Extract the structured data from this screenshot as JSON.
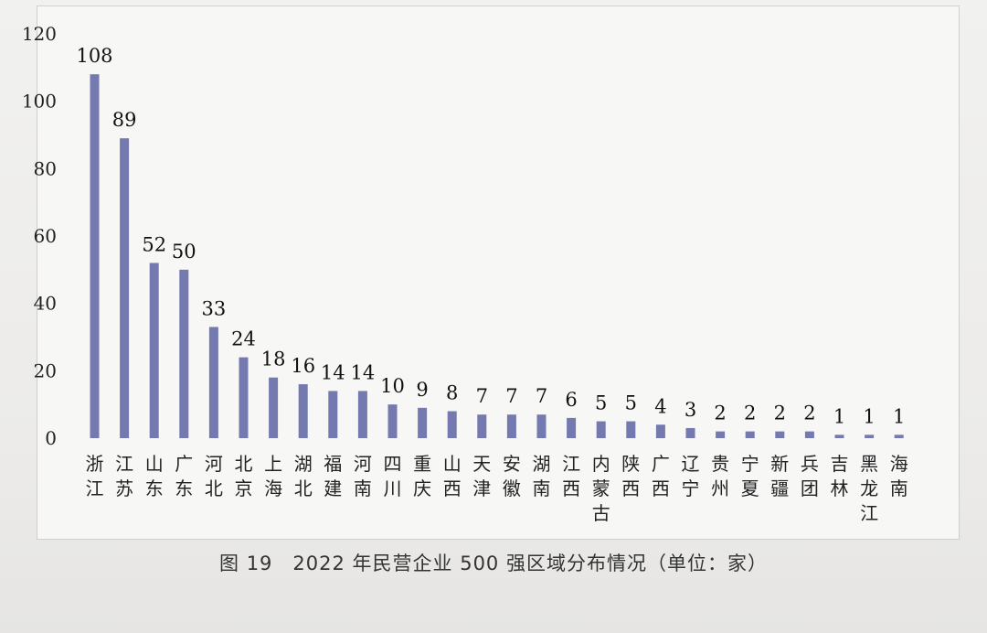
{
  "chart_data": {
    "type": "bar",
    "figure_number": "图 19",
    "title": "2022 年民营企业 500 强区域分布情况（单位：家）",
    "xlabel": "",
    "ylabel": "",
    "ylim": [
      0,
      120
    ],
    "yticks": [
      0,
      20,
      40,
      60,
      80,
      100,
      120
    ],
    "grid": false,
    "legend": "none",
    "bar_color": "#7479b0",
    "categories": [
      "浙江",
      "江苏",
      "山东",
      "广东",
      "河北",
      "北京",
      "上海",
      "湖北",
      "福建",
      "河南",
      "四川",
      "重庆",
      "山西",
      "天津",
      "安徽",
      "湖南",
      "江西",
      "内蒙古",
      "陕西",
      "广西",
      "辽宁",
      "贵州",
      "宁夏",
      "新疆",
      "兵团",
      "吉林",
      "黑龙江",
      "海南"
    ],
    "values": [
      108,
      89,
      52,
      50,
      33,
      24,
      18,
      16,
      14,
      14,
      10,
      9,
      8,
      7,
      7,
      7,
      6,
      5,
      5,
      4,
      3,
      2,
      2,
      2,
      2,
      1,
      1,
      1
    ]
  }
}
